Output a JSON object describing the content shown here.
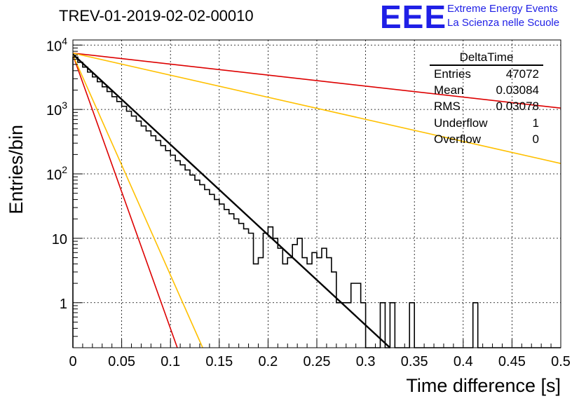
{
  "title": "TREV-01-2019-02-02-00010",
  "logo": {
    "mark": "EEE",
    "line1": "Extreme Energy Events",
    "line2": "La Scienza nelle Scuole",
    "color": "#1f1fe6"
  },
  "stats": {
    "name": "DeltaTime",
    "rows": [
      {
        "key": "Entries",
        "value": "47072"
      },
      {
        "key": "Mean",
        "value": "0.03084"
      },
      {
        "key": "RMS",
        "value": "0.03078"
      },
      {
        "key": "Underflow",
        "value": "1"
      },
      {
        "key": "Overflow",
        "value": "0"
      }
    ]
  },
  "chart_data": {
    "type": "line",
    "xlabel": "Time difference [s]",
    "ylabel": "Entries/bin",
    "xlim": [
      0,
      0.5
    ],
    "ylim": [
      0.2,
      12000
    ],
    "yscale": "log",
    "grid": true,
    "xticks": [
      "0",
      "0.05",
      "0.1",
      "0.15",
      "0.2",
      "0.25",
      "0.3",
      "0.35",
      "0.4",
      "0.45",
      "0.5"
    ],
    "yticks": [
      {
        "value": 10000,
        "base": "10",
        "exp": "4"
      },
      {
        "value": 1000,
        "base": "10",
        "exp": "3"
      },
      {
        "value": 100,
        "base": "10",
        "exp": "2"
      },
      {
        "value": 10,
        "base": "10",
        "exp": ""
      },
      {
        "value": 1,
        "base": "1",
        "exp": ""
      }
    ],
    "histogram": {
      "bin_width": 0.005,
      "counts": [
        6500,
        5400,
        4550,
        3800,
        3200,
        2700,
        2250,
        1900,
        1580,
        1330,
        1120,
        940,
        790,
        660,
        555,
        465,
        390,
        330,
        275,
        230,
        195,
        160,
        138,
        115,
        96,
        80,
        68,
        57,
        48,
        40,
        34,
        28,
        24,
        20,
        17,
        14,
        12,
        4,
        5,
        12,
        15,
        10,
        7,
        4,
        5,
        8,
        10,
        5,
        4,
        6,
        5,
        7,
        5,
        3,
        1,
        1,
        1,
        2,
        2,
        1,
        0,
        0,
        0,
        1,
        0,
        1,
        0,
        0,
        0,
        1,
        0,
        0,
        0,
        0,
        0,
        0,
        0,
        0,
        0,
        0,
        0,
        0,
        1,
        0,
        0,
        0,
        0,
        0,
        0,
        0,
        0,
        0,
        0,
        0,
        0,
        0,
        0,
        0,
        0,
        0
      ],
      "color": "#000000"
    },
    "series": [
      {
        "kind": "fit",
        "x": [
          0,
          0.325
        ],
        "y": [
          7200,
          0.2
        ],
        "color": "#000000"
      },
      {
        "kind": "band-upper",
        "x": [
          0,
          0.5
        ],
        "y": [
          7500,
          1050
        ],
        "color": "#dd0000"
      },
      {
        "kind": "band-upper",
        "x": [
          0,
          0.5
        ],
        "y": [
          7500,
          145
        ],
        "color": "#ffc000"
      },
      {
        "kind": "band-lower",
        "x": [
          0,
          0.107
        ],
        "y": [
          7000,
          0.2
        ],
        "color": "#dd0000"
      },
      {
        "kind": "band-lower",
        "x": [
          0,
          0.133
        ],
        "y": [
          7000,
          0.2
        ],
        "color": "#ffc000"
      }
    ]
  }
}
